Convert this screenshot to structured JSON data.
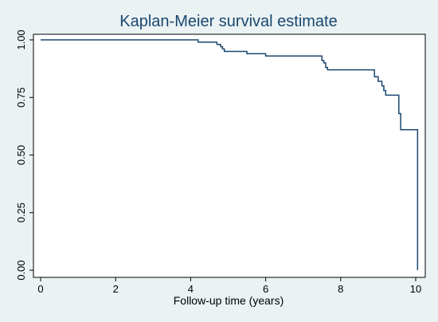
{
  "colors": {
    "background": "#eaf2f3",
    "plot_background": "#ffffff",
    "line": "#1a476f",
    "title": "#1a476f",
    "axis": "#000000"
  },
  "chart_data": {
    "type": "line",
    "title": "Kaplan-Meier survival estimate",
    "xlabel": "Follow-up time (years)",
    "ylabel": "",
    "xlim": [
      0,
      10
    ],
    "ylim": [
      0,
      1
    ],
    "xticks": [
      "0",
      "2",
      "4",
      "6",
      "8",
      "10"
    ],
    "yticks": [
      "0.00",
      "0.25",
      "0.50",
      "0.75",
      "1.00"
    ],
    "grid": false,
    "legend": "none",
    "step": true,
    "series": [
      {
        "x": [
          0,
          4.2,
          4.7,
          4.8,
          4.85,
          4.9,
          5.5,
          6.0,
          7.5,
          7.55,
          7.6,
          7.65,
          8.9,
          9.0,
          9.1,
          9.15,
          9.2,
          9.55,
          9.6,
          10.05
        ],
        "y": [
          1.0,
          0.99,
          0.98,
          0.97,
          0.96,
          0.95,
          0.94,
          0.93,
          0.91,
          0.9,
          0.88,
          0.87,
          0.84,
          0.82,
          0.8,
          0.78,
          0.76,
          0.68,
          0.61,
          0.0
        ]
      }
    ]
  }
}
